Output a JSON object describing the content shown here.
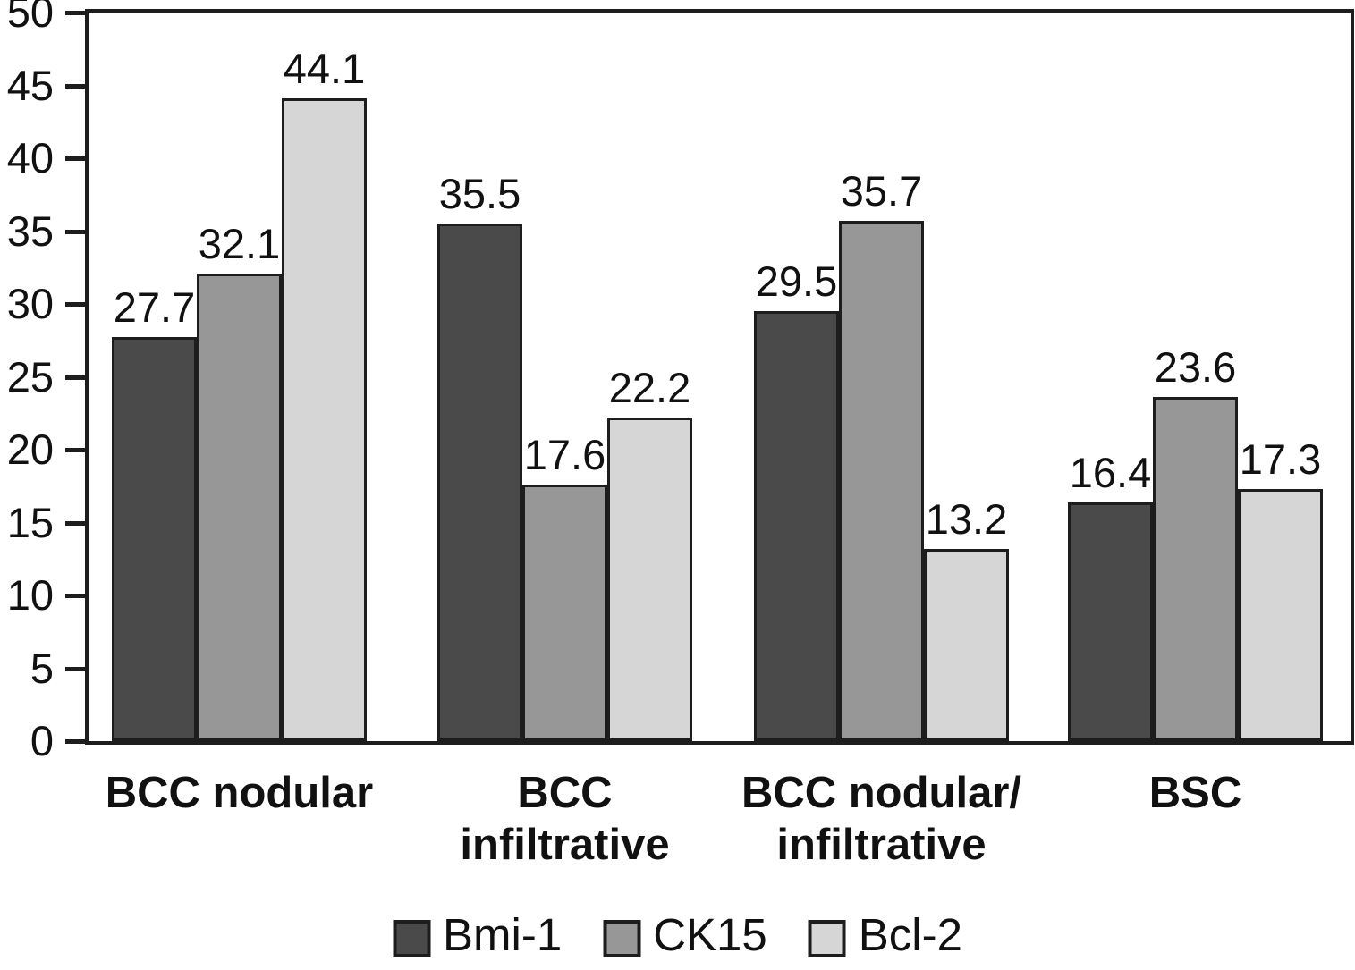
{
  "chart_data": {
    "type": "bar",
    "title": "",
    "xlabel": "",
    "ylabel": "",
    "categories": [
      "BCC nodular",
      "BCC\ninfiltrative",
      "BCC nodular/\ninfiltrative",
      "BSC"
    ],
    "series": [
      {
        "name": "Bmi-1",
        "color": "#4a4a4a",
        "values": [
          27.7,
          35.5,
          29.5,
          16.4
        ]
      },
      {
        "name": "CK15",
        "color": "#979797",
        "values": [
          32.1,
          17.6,
          35.7,
          23.6
        ]
      },
      {
        "name": "Bcl-2",
        "color": "#d6d6d6",
        "values": [
          44.1,
          22.2,
          13.2,
          17.3
        ]
      }
    ],
    "ylim": [
      0,
      50
    ],
    "yticks": [
      0,
      5,
      10,
      15,
      20,
      25,
      30,
      35,
      40,
      45,
      50
    ],
    "grid": false,
    "frame": true,
    "value_labels_shown": true,
    "legend_position": "bottom",
    "axis_color": "#1d1d1d",
    "background_color": "#ffffff"
  }
}
